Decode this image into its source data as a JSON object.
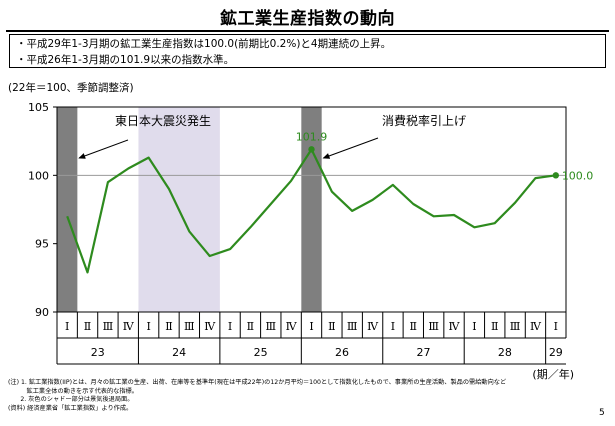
{
  "header": {
    "title": "鉱工業生産指数の動向"
  },
  "bullets": [
    "・平成29年1-3月期の鉱工業生産指数は100.0(前期比0.2%)と4期連続の上昇。",
    "・平成26年1-3月期の101.9以来の指数水準。"
  ],
  "unit_note": "(22年＝100、季節調整済)",
  "chart_data": {
    "type": "line",
    "title": "",
    "xlabel": "(期／年)",
    "ylabel": "",
    "ylim": [
      90,
      105
    ],
    "yticks": [
      "90",
      "95",
      "100",
      "105"
    ],
    "quarter_labels": [
      "Ⅰ",
      "Ⅱ",
      "Ⅲ",
      "Ⅳ",
      "Ⅰ",
      "Ⅱ",
      "Ⅲ",
      "Ⅳ",
      "Ⅰ",
      "Ⅱ",
      "Ⅲ",
      "Ⅳ",
      "Ⅰ",
      "Ⅱ",
      "Ⅲ",
      "Ⅳ",
      "Ⅰ",
      "Ⅱ",
      "Ⅲ",
      "Ⅳ",
      "Ⅰ",
      "Ⅱ",
      "Ⅲ",
      "Ⅳ",
      "Ⅰ"
    ],
    "year_labels": [
      "23",
      "24",
      "25",
      "26",
      "27",
      "28",
      "29"
    ],
    "series": [
      {
        "color": "#2e8b1e",
        "values": [
          97.0,
          92.9,
          99.5,
          100.5,
          101.3,
          99.0,
          95.9,
          94.1,
          94.6,
          96.2,
          97.9,
          99.6,
          101.9,
          98.8,
          97.4,
          98.2,
          99.3,
          97.9,
          97.0,
          97.1,
          96.2,
          96.5,
          98.0,
          99.8,
          100.0
        ]
      }
    ],
    "reference_line": 100,
    "data_labels": [
      {
        "index": 12,
        "text": "101.9"
      },
      {
        "index": 24,
        "text": "100.0"
      }
    ],
    "recession_shading": [
      {
        "from": 0,
        "to": 0,
        "color": "#7f7f7f"
      },
      {
        "from": 4,
        "to": 7,
        "color": "#e0dcec"
      },
      {
        "from": 12,
        "to": 12,
        "color": "#7f7f7f"
      }
    ],
    "annotations": [
      {
        "text": "東日本大震災発生",
        "target": 0
      },
      {
        "text": "消費税率引上げ",
        "target": 12
      }
    ],
    "grid": false
  },
  "notes": [
    "(注) 1. 鉱工業指数(IIP)とは、月々の鉱工業の生産、出荷、在庫等を基準年(現在は平成22年)の12か月平均＝100として指数化したもので、事業所の生産活動、製品の需給動向など",
    "　　　鉱工業全体の動きを示す代表的な指標。",
    "　　2. 灰色のシャドー部分は景気後退局面。",
    "(資料) 経済産業省「鉱工業指数」より作成。"
  ],
  "page_number": "5"
}
